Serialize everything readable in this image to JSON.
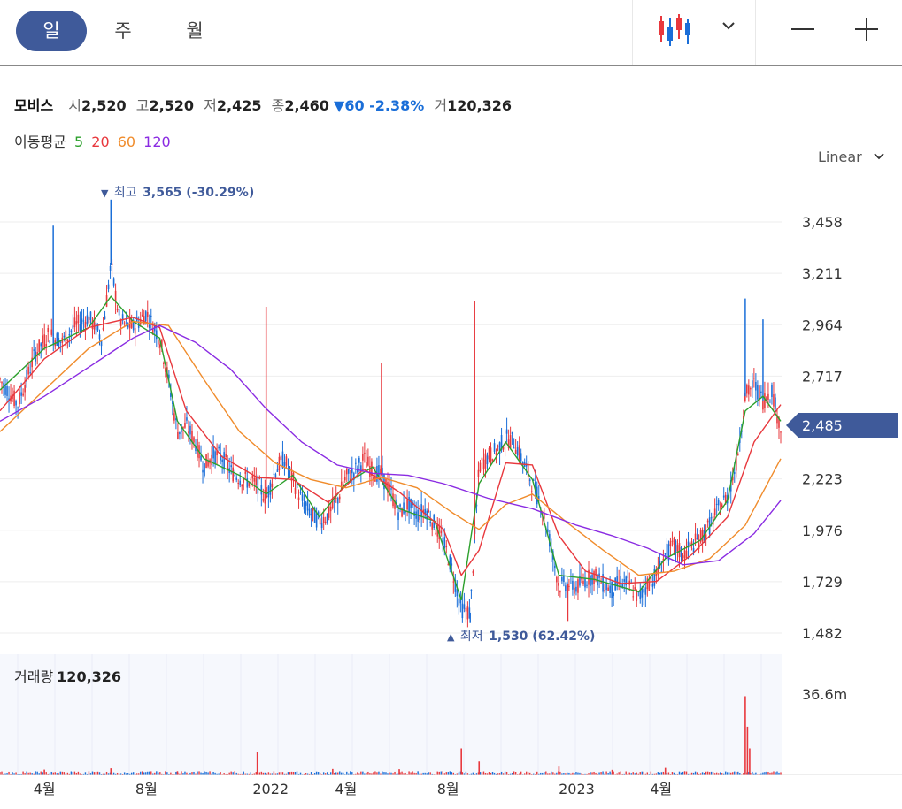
{
  "tabs": [
    {
      "label": "일",
      "active": true
    },
    {
      "label": "주",
      "active": false
    },
    {
      "label": "월",
      "active": false
    }
  ],
  "toolbar": {
    "chart_type_icon": "candlestick-icon",
    "dropdown_icon": "chevron-down-icon",
    "zoom_out_icon": "minus-icon",
    "zoom_in_icon": "plus-icon"
  },
  "info": {
    "name": "모비스",
    "open_label": "시",
    "open": "2,520",
    "high_label": "고",
    "high": "2,520",
    "low_label": "저",
    "low": "2,425",
    "close_label": "종",
    "close": "2,460",
    "change": "▼60 -2.38%",
    "volume_label": "거",
    "volume": "120,326"
  },
  "ma": {
    "label": "이동평균",
    "periods": [
      "5",
      "20",
      "60",
      "120"
    ],
    "colors": [
      "#2ca02c",
      "#e8383d",
      "#f08c2c",
      "#8a2be2"
    ]
  },
  "scale_mode": "Linear",
  "colors": {
    "up": "#e8383d",
    "down": "#1a6ed8",
    "accent": "#3f5a9a"
  },
  "chart_data": {
    "type": "candlestick",
    "y_ticks": [
      "3,458",
      "3,211",
      "2,964",
      "2,717",
      "2,223",
      "1,976",
      "1,729",
      "1,482"
    ],
    "ylim": [
      1400,
      3700
    ],
    "current_price": "2,485",
    "high_annotation": {
      "arrow": "▼",
      "label": "최고",
      "value": "3,565 (-30.29%)"
    },
    "low_annotation": {
      "arrow": "▲",
      "label": "최저",
      "value": "1,530 (62.42%)"
    },
    "x_ticks": [
      "4월",
      "8월",
      "2022",
      "4월",
      "8월",
      "2023",
      "4월"
    ],
    "close_path": [
      {
        "x": 0,
        "y": 2700
      },
      {
        "x": 4,
        "y": 2580
      },
      {
        "x": 8,
        "y": 2830
      },
      {
        "x": 11,
        "y": 2920
      },
      {
        "x": 14,
        "y": 2880
      },
      {
        "x": 17,
        "y": 2960
      },
      {
        "x": 20,
        "y": 3000
      },
      {
        "x": 23,
        "y": 2900
      },
      {
        "x": 25,
        "y": 3250
      },
      {
        "x": 27,
        "y": 2980
      },
      {
        "x": 30,
        "y": 2950
      },
      {
        "x": 33,
        "y": 3020
      },
      {
        "x": 36,
        "y": 2900
      },
      {
        "x": 38,
        "y": 2700
      },
      {
        "x": 40,
        "y": 2450
      },
      {
        "x": 42,
        "y": 2480
      },
      {
        "x": 44,
        "y": 2400
      },
      {
        "x": 46,
        "y": 2280
      },
      {
        "x": 48,
        "y": 2340
      },
      {
        "x": 50,
        "y": 2330
      },
      {
        "x": 52,
        "y": 2260
      },
      {
        "x": 54,
        "y": 2230
      },
      {
        "x": 56,
        "y": 2210
      },
      {
        "x": 58,
        "y": 2200
      },
      {
        "x": 60,
        "y": 2130
      },
      {
        "x": 62,
        "y": 2260
      },
      {
        "x": 64,
        "y": 2320
      },
      {
        "x": 66,
        "y": 2220
      },
      {
        "x": 68,
        "y": 2120
      },
      {
        "x": 70,
        "y": 2060
      },
      {
        "x": 72,
        "y": 2020
      },
      {
        "x": 74,
        "y": 2050
      },
      {
        "x": 76,
        "y": 2120
      },
      {
        "x": 78,
        "y": 2230
      },
      {
        "x": 80,
        "y": 2260
      },
      {
        "x": 82,
        "y": 2320
      },
      {
        "x": 84,
        "y": 2260
      },
      {
        "x": 86,
        "y": 2240
      },
      {
        "x": 88,
        "y": 2160
      },
      {
        "x": 90,
        "y": 2060
      },
      {
        "x": 92,
        "y": 2100
      },
      {
        "x": 94,
        "y": 2050
      },
      {
        "x": 96,
        "y": 2080
      },
      {
        "x": 98,
        "y": 2000
      },
      {
        "x": 100,
        "y": 1920
      },
      {
        "x": 102,
        "y": 1780
      },
      {
        "x": 104,
        "y": 1600
      },
      {
        "x": 106,
        "y": 1580
      },
      {
        "x": 108,
        "y": 2280
      },
      {
        "x": 110,
        "y": 2330
      },
      {
        "x": 112,
        "y": 2360
      },
      {
        "x": 114,
        "y": 2420
      },
      {
        "x": 116,
        "y": 2400
      },
      {
        "x": 118,
        "y": 2300
      },
      {
        "x": 120,
        "y": 2200
      },
      {
        "x": 122,
        "y": 2100
      },
      {
        "x": 124,
        "y": 1920
      },
      {
        "x": 126,
        "y": 1710
      },
      {
        "x": 128,
        "y": 1720
      },
      {
        "x": 130,
        "y": 1700
      },
      {
        "x": 132,
        "y": 1740
      },
      {
        "x": 134,
        "y": 1760
      },
      {
        "x": 136,
        "y": 1720
      },
      {
        "x": 138,
        "y": 1690
      },
      {
        "x": 140,
        "y": 1730
      },
      {
        "x": 142,
        "y": 1710
      },
      {
        "x": 144,
        "y": 1650
      },
      {
        "x": 146,
        "y": 1720
      },
      {
        "x": 148,
        "y": 1760
      },
      {
        "x": 150,
        "y": 1860
      },
      {
        "x": 152,
        "y": 1900
      },
      {
        "x": 154,
        "y": 1860
      },
      {
        "x": 156,
        "y": 1900
      },
      {
        "x": 158,
        "y": 1940
      },
      {
        "x": 160,
        "y": 2000
      },
      {
        "x": 162,
        "y": 2080
      },
      {
        "x": 164,
        "y": 2140
      },
      {
        "x": 166,
        "y": 2300
      },
      {
        "x": 168,
        "y": 2620
      },
      {
        "x": 170,
        "y": 2680
      },
      {
        "x": 172,
        "y": 2600
      },
      {
        "x": 174,
        "y": 2650
      },
      {
        "x": 176,
        "y": 2460
      }
    ],
    "ma5_path": [
      {
        "x": 0,
        "y": 2650
      },
      {
        "x": 10,
        "y": 2850
      },
      {
        "x": 20,
        "y": 2950
      },
      {
        "x": 25,
        "y": 3100
      },
      {
        "x": 30,
        "y": 2980
      },
      {
        "x": 36,
        "y": 2900
      },
      {
        "x": 40,
        "y": 2500
      },
      {
        "x": 46,
        "y": 2320
      },
      {
        "x": 54,
        "y": 2240
      },
      {
        "x": 60,
        "y": 2150
      },
      {
        "x": 66,
        "y": 2240
      },
      {
        "x": 72,
        "y": 2040
      },
      {
        "x": 78,
        "y": 2200
      },
      {
        "x": 84,
        "y": 2280
      },
      {
        "x": 90,
        "y": 2080
      },
      {
        "x": 98,
        "y": 2020
      },
      {
        "x": 104,
        "y": 1640
      },
      {
        "x": 108,
        "y": 2200
      },
      {
        "x": 114,
        "y": 2400
      },
      {
        "x": 120,
        "y": 2220
      },
      {
        "x": 126,
        "y": 1760
      },
      {
        "x": 134,
        "y": 1740
      },
      {
        "x": 144,
        "y": 1680
      },
      {
        "x": 150,
        "y": 1840
      },
      {
        "x": 158,
        "y": 1930
      },
      {
        "x": 164,
        "y": 2120
      },
      {
        "x": 168,
        "y": 2550
      },
      {
        "x": 172,
        "y": 2620
      },
      {
        "x": 176,
        "y": 2500
      }
    ],
    "ma20_path": [
      {
        "x": 0,
        "y": 2550
      },
      {
        "x": 10,
        "y": 2800
      },
      {
        "x": 20,
        "y": 2950
      },
      {
        "x": 30,
        "y": 3000
      },
      {
        "x": 36,
        "y": 2950
      },
      {
        "x": 42,
        "y": 2550
      },
      {
        "x": 50,
        "y": 2330
      },
      {
        "x": 58,
        "y": 2230
      },
      {
        "x": 66,
        "y": 2220
      },
      {
        "x": 74,
        "y": 2110
      },
      {
        "x": 82,
        "y": 2270
      },
      {
        "x": 90,
        "y": 2160
      },
      {
        "x": 100,
        "y": 1980
      },
      {
        "x": 104,
        "y": 1760
      },
      {
        "x": 108,
        "y": 1880
      },
      {
        "x": 114,
        "y": 2300
      },
      {
        "x": 120,
        "y": 2290
      },
      {
        "x": 126,
        "y": 1950
      },
      {
        "x": 132,
        "y": 1780
      },
      {
        "x": 140,
        "y": 1720
      },
      {
        "x": 148,
        "y": 1730
      },
      {
        "x": 156,
        "y": 1860
      },
      {
        "x": 164,
        "y": 2040
      },
      {
        "x": 170,
        "y": 2400
      },
      {
        "x": 176,
        "y": 2580
      }
    ],
    "ma60_path": [
      {
        "x": 0,
        "y": 2450
      },
      {
        "x": 10,
        "y": 2650
      },
      {
        "x": 20,
        "y": 2850
      },
      {
        "x": 30,
        "y": 2980
      },
      {
        "x": 38,
        "y": 2960
      },
      {
        "x": 46,
        "y": 2700
      },
      {
        "x": 54,
        "y": 2450
      },
      {
        "x": 62,
        "y": 2300
      },
      {
        "x": 70,
        "y": 2220
      },
      {
        "x": 78,
        "y": 2180
      },
      {
        "x": 86,
        "y": 2230
      },
      {
        "x": 94,
        "y": 2180
      },
      {
        "x": 102,
        "y": 2060
      },
      {
        "x": 108,
        "y": 1980
      },
      {
        "x": 114,
        "y": 2100
      },
      {
        "x": 120,
        "y": 2150
      },
      {
        "x": 128,
        "y": 2010
      },
      {
        "x": 136,
        "y": 1880
      },
      {
        "x": 144,
        "y": 1760
      },
      {
        "x": 152,
        "y": 1780
      },
      {
        "x": 160,
        "y": 1840
      },
      {
        "x": 168,
        "y": 2000
      },
      {
        "x": 176,
        "y": 2320
      }
    ],
    "ma120_path": [
      {
        "x": 0,
        "y": 2500
      },
      {
        "x": 10,
        "y": 2620
      },
      {
        "x": 20,
        "y": 2760
      },
      {
        "x": 30,
        "y": 2900
      },
      {
        "x": 36,
        "y": 2960
      },
      {
        "x": 44,
        "y": 2880
      },
      {
        "x": 52,
        "y": 2750
      },
      {
        "x": 60,
        "y": 2560
      },
      {
        "x": 68,
        "y": 2400
      },
      {
        "x": 76,
        "y": 2290
      },
      {
        "x": 84,
        "y": 2250
      },
      {
        "x": 92,
        "y": 2240
      },
      {
        "x": 100,
        "y": 2200
      },
      {
        "x": 110,
        "y": 2130
      },
      {
        "x": 120,
        "y": 2080
      },
      {
        "x": 130,
        "y": 2000
      },
      {
        "x": 138,
        "y": 1950
      },
      {
        "x": 146,
        "y": 1890
      },
      {
        "x": 154,
        "y": 1810
      },
      {
        "x": 162,
        "y": 1830
      },
      {
        "x": 170,
        "y": 1960
      },
      {
        "x": 176,
        "y": 2120
      }
    ],
    "volume": {
      "label": "거래량",
      "value": "120,326",
      "y_tick": "36.6m",
      "max": 36.6,
      "spikes": [
        {
          "x": 58,
          "v": 10.5
        },
        {
          "x": 104,
          "v": 12
        },
        {
          "x": 108,
          "v": 6
        },
        {
          "x": 168,
          "v": 36
        },
        {
          "x": 168.5,
          "v": 22
        },
        {
          "x": 169,
          "v": 12
        },
        {
          "x": 126,
          "v": 4
        },
        {
          "x": 75,
          "v": 2.5
        },
        {
          "x": 150,
          "v": 3
        },
        {
          "x": 10,
          "v": 2.2
        },
        {
          "x": 25,
          "v": 2.8
        },
        {
          "x": 40,
          "v": 1.5
        },
        {
          "x": 90,
          "v": 2.4
        },
        {
          "x": 138,
          "v": 2.1
        }
      ]
    }
  }
}
